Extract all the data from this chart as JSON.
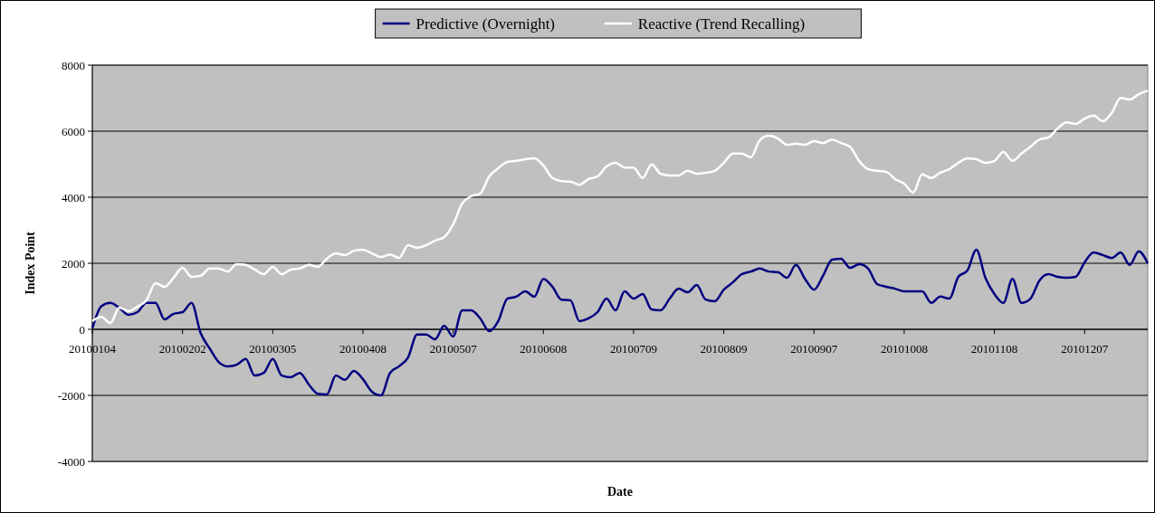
{
  "chart_data": {
    "type": "line",
    "xlabel": "Date",
    "ylabel": "Index Point",
    "categories": [
      "20100104",
      null,
      null,
      null,
      null,
      null,
      null,
      null,
      null,
      null,
      "20100202",
      null,
      null,
      null,
      null,
      null,
      null,
      null,
      null,
      null,
      "20100305",
      null,
      null,
      null,
      null,
      null,
      null,
      null,
      null,
      null,
      "20100408",
      null,
      null,
      null,
      null,
      null,
      null,
      null,
      null,
      null,
      "20100507",
      null,
      null,
      null,
      null,
      null,
      null,
      null,
      null,
      null,
      "20100608",
      null,
      null,
      null,
      null,
      null,
      null,
      null,
      null,
      null,
      "20100709",
      null,
      null,
      null,
      null,
      null,
      null,
      null,
      null,
      null,
      "20100809",
      null,
      null,
      null,
      null,
      null,
      null,
      null,
      null,
      null,
      "20100907",
      null,
      null,
      null,
      null,
      null,
      null,
      null,
      null,
      null,
      "20101008",
      null,
      null,
      null,
      null,
      null,
      null,
      null,
      null,
      null,
      "20101108",
      null,
      null,
      null,
      null,
      null,
      null,
      null,
      null,
      null,
      "20101207",
      null,
      null,
      null,
      null,
      null,
      null,
      null
    ],
    "series": [
      {
        "name": "Predictive (Overnight)",
        "color": "#000080",
        "values": [
          30,
          700,
          800,
          650,
          440,
          520,
          800,
          800,
          300,
          470,
          520,
          800,
          -110,
          -575,
          -990,
          -1120,
          -1070,
          -900,
          -1400,
          -1320,
          -900,
          -1400,
          -1450,
          -1320,
          -1670,
          -1950,
          -1970,
          -1400,
          -1530,
          -1260,
          -1510,
          -1890,
          -2000,
          -1320,
          -1120,
          -850,
          -160,
          -160,
          -300,
          110,
          -220,
          575,
          575,
          330,
          -55,
          250,
          930,
          990,
          1150,
          990,
          1530,
          1290,
          900,
          880,
          250,
          330,
          520,
          930,
          575,
          1150,
          930,
          1070,
          600,
          575,
          930,
          1230,
          1120,
          1340,
          900,
          850,
          1200,
          1420,
          1670,
          1750,
          1840,
          1750,
          1730,
          1560,
          1950,
          1530,
          1200,
          1620,
          2110,
          2140,
          1860,
          1970,
          1840,
          1370,
          1290,
          1230,
          1150,
          1150,
          1150,
          800,
          990,
          930,
          1590,
          1780,
          2410,
          1560,
          1070,
          800,
          1530,
          800,
          930,
          1480,
          1670,
          1590,
          1560,
          1590,
          2030,
          2330,
          2250,
          2160,
          2330,
          1950,
          2360,
          2000
        ]
      },
      {
        "name": "Reactive (Trend Recalling)",
        "color": "#ffffff",
        "values": [
          250,
          380,
          190,
          660,
          550,
          690,
          880,
          1400,
          1290,
          1560,
          1860,
          1590,
          1620,
          1840,
          1840,
          1750,
          1970,
          1950,
          1810,
          1670,
          1890,
          1670,
          1810,
          1840,
          1950,
          1890,
          2140,
          2300,
          2250,
          2380,
          2410,
          2300,
          2190,
          2270,
          2160,
          2550,
          2470,
          2550,
          2690,
          2790,
          3180,
          3810,
          4030,
          4110,
          4630,
          4880,
          5070,
          5100,
          5150,
          5180,
          4960,
          4580,
          4490,
          4470,
          4380,
          4550,
          4630,
          4930,
          5040,
          4900,
          4900,
          4580,
          4990,
          4710,
          4660,
          4660,
          4800,
          4710,
          4740,
          4800,
          5040,
          5320,
          5320,
          5210,
          5730,
          5860,
          5780,
          5590,
          5620,
          5590,
          5700,
          5640,
          5750,
          5640,
          5530,
          5100,
          4850,
          4800,
          4770,
          4550,
          4410,
          4140,
          4690,
          4580,
          4740,
          4850,
          5040,
          5180,
          5150,
          5040,
          5100,
          5370,
          5100,
          5320,
          5530,
          5750,
          5810,
          6080,
          6270,
          6220,
          6380,
          6470,
          6300,
          6550,
          7010,
          6960,
          7120,
          7230
        ]
      }
    ],
    "ylim": [
      -4000,
      8000
    ],
    "yticks": [
      -4000,
      -2000,
      0,
      2000,
      4000,
      6000,
      8000
    ],
    "grid": "y",
    "legend": "top",
    "marker": "none",
    "line_style": "solid"
  }
}
